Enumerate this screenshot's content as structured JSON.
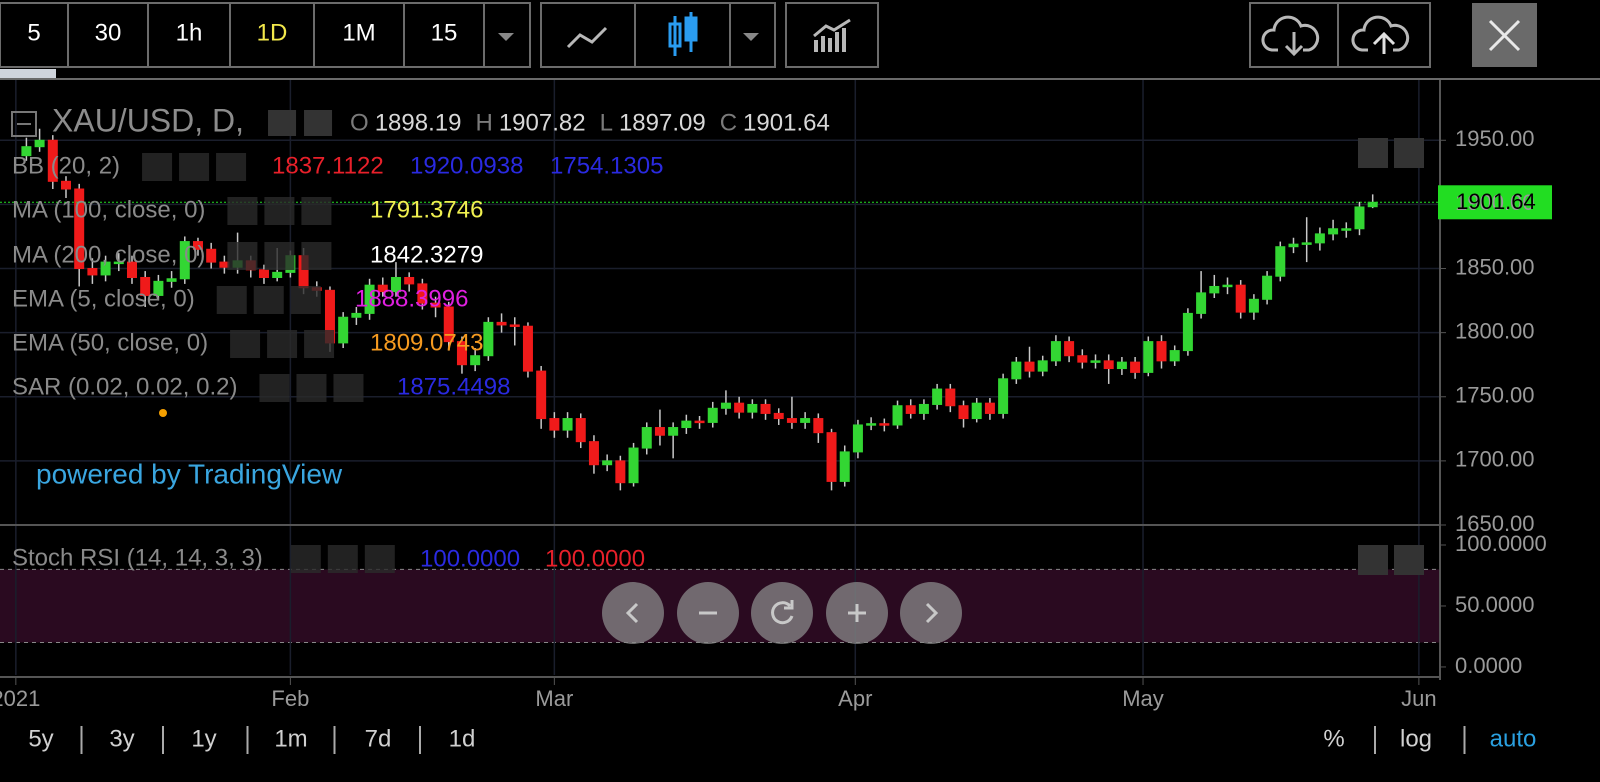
{
  "toolbar": {
    "intervals": [
      "5",
      "30",
      "1h",
      "1D",
      "1M",
      "15"
    ],
    "active": "1D",
    "active_color": "#f2e84b"
  },
  "legend": {
    "symbol": "XAU/USD, D,",
    "ohlc_letters": [
      "O",
      "H",
      "L",
      "C"
    ],
    "indicators": [
      {
        "name": "BB (20, 2)",
        "values": [
          "1837.1122",
          "1920.0938",
          "1754.1305"
        ],
        "colors": [
          "#e8202a",
          "#2a2ae0",
          "#2a2ae0"
        ]
      },
      {
        "name": "MA (100, close, 0)",
        "values": [
          "1791.3746"
        ],
        "colors": [
          "#f0f050"
        ]
      },
      {
        "name": "MA (200, close, 0)",
        "values": [
          "1842.3279"
        ],
        "colors": [
          "#ffffff"
        ]
      },
      {
        "name": "EMA (5, close, 0)",
        "values": [
          "1888.3996"
        ],
        "colors": [
          "#e020e0"
        ]
      },
      {
        "name": "EMA (50, close, 0)",
        "values": [
          "1809.0743"
        ],
        "colors": [
          "#f59a20"
        ]
      },
      {
        "name": "SAR (0.02, 0.02, 0.2)",
        "values": [
          "1875.4498"
        ],
        "colors": [
          "#2a2ae0"
        ]
      }
    ]
  },
  "watermark": "powered by TradingView",
  "chart_data": {
    "type": "candlestick",
    "up_color": "#33d633",
    "down_color": "#f01a1a",
    "grid": true,
    "ylim": [
      1650,
      1997
    ],
    "yticks": [
      {
        "value": 1650,
        "label": "1650.00"
      },
      {
        "value": 1700,
        "label": "1700.00"
      },
      {
        "value": 1750,
        "label": "1750.00"
      },
      {
        "value": 1800,
        "label": "1800.00"
      },
      {
        "value": 1850,
        "label": "1850.00"
      },
      {
        "value": 1900,
        "label": "1900.00"
      },
      {
        "value": 1950,
        "label": "1950.00"
      }
    ],
    "xlim": [
      -2,
      107.1
    ],
    "xticks": [
      {
        "value": -0.8,
        "label": "2021"
      },
      {
        "value": 20,
        "label": "Feb"
      },
      {
        "value": 40,
        "label": "Mar"
      },
      {
        "value": 62.8,
        "label": "Apr"
      },
      {
        "value": 84.6,
        "label": "May"
      },
      {
        "value": 105.5,
        "label": "Jun"
      }
    ],
    "candles": [
      [
        1938,
        1952,
        1934,
        1945
      ],
      [
        1945,
        1959,
        1941,
        1950
      ],
      [
        1950,
        1954,
        1912,
        1918
      ],
      [
        1918,
        1922,
        1905,
        1912
      ],
      [
        1912,
        1916,
        1836,
        1850
      ],
      [
        1850,
        1858,
        1838,
        1845
      ],
      [
        1845,
        1860,
        1840,
        1855
      ],
      [
        1855,
        1862,
        1848,
        1855
      ],
      [
        1855,
        1860,
        1838,
        1843
      ],
      [
        1843,
        1848,
        1820,
        1829
      ],
      [
        1829,
        1845,
        1825,
        1840
      ],
      [
        1840,
        1848,
        1835,
        1842
      ],
      [
        1842,
        1875,
        1838,
        1871
      ],
      [
        1871,
        1874,
        1860,
        1865
      ],
      [
        1865,
        1870,
        1850,
        1855
      ],
      [
        1855,
        1860,
        1846,
        1851
      ],
      [
        1851,
        1878,
        1846,
        1856
      ],
      [
        1856,
        1860,
        1843,
        1849
      ],
      [
        1849,
        1853,
        1838,
        1843
      ],
      [
        1843,
        1866,
        1840,
        1847
      ],
      [
        1847,
        1864,
        1843,
        1860
      ],
      [
        1860,
        1866,
        1830,
        1835
      ],
      [
        1835,
        1840,
        1828,
        1833
      ],
      [
        1833,
        1836,
        1785,
        1792
      ],
      [
        1792,
        1816,
        1788,
        1812
      ],
      [
        1812,
        1820,
        1806,
        1815
      ],
      [
        1815,
        1842,
        1810,
        1837
      ],
      [
        1837,
        1843,
        1828,
        1832
      ],
      [
        1832,
        1855,
        1828,
        1843
      ],
      [
        1843,
        1847,
        1832,
        1838
      ],
      [
        1838,
        1842,
        1818,
        1823
      ],
      [
        1823,
        1828,
        1812,
        1820
      ],
      [
        1820,
        1824,
        1786,
        1793
      ],
      [
        1793,
        1797,
        1768,
        1775
      ],
      [
        1775,
        1788,
        1770,
        1782
      ],
      [
        1782,
        1812,
        1778,
        1808
      ],
      [
        1808,
        1815,
        1800,
        1806
      ],
      [
        1806,
        1812,
        1790,
        1805
      ],
      [
        1805,
        1808,
        1765,
        1770
      ],
      [
        1770,
        1774,
        1725,
        1733
      ],
      [
        1733,
        1738,
        1718,
        1724
      ],
      [
        1724,
        1738,
        1718,
        1733
      ],
      [
        1733,
        1737,
        1710,
        1715
      ],
      [
        1715,
        1720,
        1690,
        1697
      ],
      [
        1697,
        1705,
        1692,
        1700
      ],
      [
        1700,
        1704,
        1677,
        1683
      ],
      [
        1683,
        1714,
        1680,
        1710
      ],
      [
        1710,
        1730,
        1705,
        1726
      ],
      [
        1726,
        1740,
        1712,
        1720
      ],
      [
        1720,
        1730,
        1702,
        1726
      ],
      [
        1726,
        1736,
        1721,
        1731
      ],
      [
        1731,
        1735,
        1725,
        1730
      ],
      [
        1730,
        1746,
        1726,
        1741
      ],
      [
        1741,
        1755,
        1736,
        1745
      ],
      [
        1745,
        1750,
        1733,
        1738
      ],
      [
        1738,
        1748,
        1733,
        1744
      ],
      [
        1744,
        1748,
        1732,
        1737
      ],
      [
        1737,
        1741,
        1728,
        1733
      ],
      [
        1733,
        1750,
        1725,
        1730
      ],
      [
        1730,
        1738,
        1725,
        1733
      ],
      [
        1733,
        1737,
        1714,
        1722
      ],
      [
        1722,
        1725,
        1677,
        1684
      ],
      [
        1684,
        1712,
        1680,
        1707
      ],
      [
        1707,
        1732,
        1702,
        1728
      ],
      [
        1728,
        1734,
        1724,
        1729
      ],
      [
        1729,
        1733,
        1723,
        1728
      ],
      [
        1728,
        1747,
        1725,
        1743
      ],
      [
        1743,
        1748,
        1733,
        1737
      ],
      [
        1737,
        1748,
        1732,
        1744
      ],
      [
        1744,
        1760,
        1740,
        1756
      ],
      [
        1756,
        1760,
        1738,
        1743
      ],
      [
        1743,
        1747,
        1726,
        1733
      ],
      [
        1733,
        1749,
        1730,
        1745
      ],
      [
        1745,
        1749,
        1732,
        1737
      ],
      [
        1737,
        1768,
        1733,
        1764
      ],
      [
        1764,
        1781,
        1760,
        1777
      ],
      [
        1777,
        1789,
        1765,
        1770
      ],
      [
        1770,
        1782,
        1766,
        1778
      ],
      [
        1778,
        1798,
        1774,
        1793
      ],
      [
        1793,
        1797,
        1777,
        1782
      ],
      [
        1782,
        1787,
        1772,
        1777
      ],
      [
        1777,
        1783,
        1772,
        1778
      ],
      [
        1778,
        1783,
        1760,
        1772
      ],
      [
        1772,
        1781,
        1767,
        1777
      ],
      [
        1777,
        1781,
        1764,
        1769
      ],
      [
        1769,
        1797,
        1766,
        1793
      ],
      [
        1793,
        1798,
        1772,
        1778
      ],
      [
        1778,
        1790,
        1774,
        1786
      ],
      [
        1786,
        1819,
        1782,
        1815
      ],
      [
        1815,
        1848,
        1811,
        1831
      ],
      [
        1831,
        1845,
        1827,
        1836
      ],
      [
        1836,
        1843,
        1830,
        1837
      ],
      [
        1837,
        1841,
        1811,
        1816
      ],
      [
        1816,
        1830,
        1810,
        1826
      ],
      [
        1826,
        1848,
        1822,
        1844
      ],
      [
        1844,
        1871,
        1840,
        1867
      ],
      [
        1867,
        1874,
        1862,
        1869
      ],
      [
        1869,
        1890,
        1855,
        1870
      ],
      [
        1870,
        1882,
        1864,
        1877
      ],
      [
        1877,
        1888,
        1872,
        1881
      ],
      [
        1881,
        1886,
        1874,
        1881
      ],
      [
        1881,
        1902,
        1876,
        1898
      ],
      [
        1898.19,
        1907.82,
        1897.09,
        1901.64
      ]
    ],
    "price_label_color": "#22dd22"
  },
  "stoch": {
    "name": "Stoch RSI (14, 14, 3, 3)",
    "values": [
      "100.0000",
      "100.0000"
    ],
    "colors": [
      "#2a2ae0",
      "#e8202a"
    ],
    "ylim": [
      -6.6,
      112.3
    ],
    "yticks": [
      {
        "value": 0,
        "label": "0.0000"
      },
      {
        "value": 50,
        "label": "50.0000"
      },
      {
        "value": 100,
        "label": "100.0000"
      }
    ],
    "bands": [
      20,
      80
    ],
    "band_color": "#2a0a20"
  },
  "ranges": [
    "5y",
    "3y",
    "1y",
    "1m",
    "7d",
    "1d"
  ],
  "scale_modes": [
    "%",
    "log",
    "auto"
  ],
  "scale_active": "auto",
  "scale_active_color": "#2aa0e0"
}
